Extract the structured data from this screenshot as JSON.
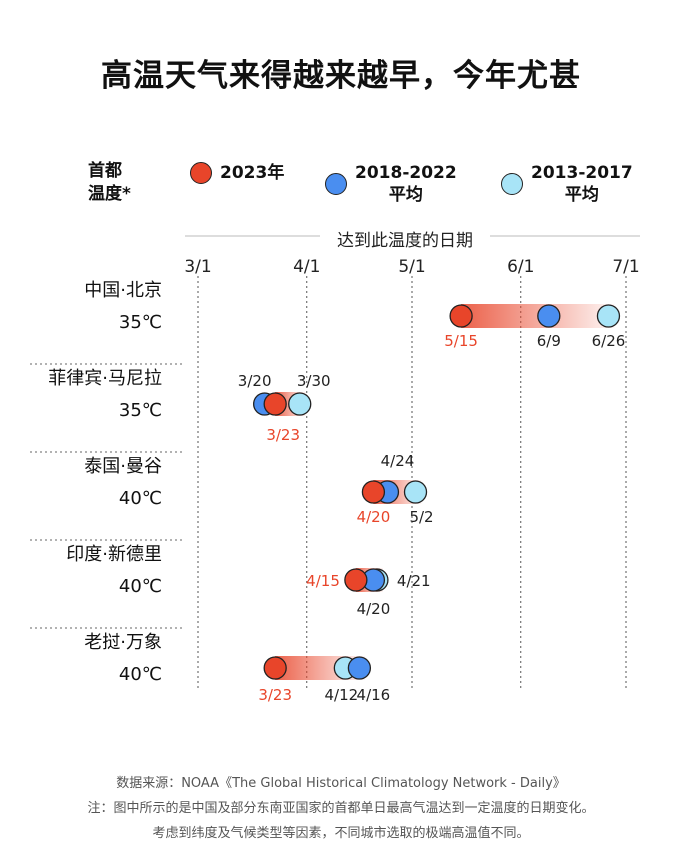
{
  "title": "高温天气来得越来越早，今年尤甚",
  "legend": {
    "header_line1": "首都",
    "header_line2": "温度*",
    "items": [
      {
        "line1": "2023年",
        "line2": "",
        "color": "#e8452a"
      },
      {
        "line1": "2018-2022",
        "line2": "平均",
        "color": "#4a8ef0"
      },
      {
        "line1": "2013-2017",
        "line2": "平均",
        "color": "#a8e4f7"
      }
    ]
  },
  "chart_data": {
    "type": "scatter",
    "xlabel": "达到此温度的日期",
    "x_ticks": [
      "3/1",
      "4/1",
      "5/1",
      "6/1",
      "7/1"
    ],
    "rows": [
      {
        "city": "中国·北京",
        "temp": "35℃",
        "points": [
          {
            "series": "2023年",
            "date": "5/15",
            "label": "5/15"
          },
          {
            "series": "2018-2022平均",
            "date": "6/9",
            "label": "6/9"
          },
          {
            "series": "2013-2017平均",
            "date": "6/26",
            "label": "6/26"
          }
        ]
      },
      {
        "city": "菲律宾·马尼拉",
        "temp": "35℃",
        "points": [
          {
            "series": "2023年",
            "date": "3/23",
            "label": "3/23"
          },
          {
            "series": "2018-2022平均",
            "date": "3/20",
            "label": "3/20"
          },
          {
            "series": "2013-2017平均",
            "date": "3/30",
            "label": "3/30"
          }
        ]
      },
      {
        "city": "泰国·曼谷",
        "temp": "40℃",
        "points": [
          {
            "series": "2023年",
            "date": "4/20",
            "label": "4/20"
          },
          {
            "series": "2018-2022平均",
            "date": "4/24",
            "label": "4/24"
          },
          {
            "series": "2013-2017平均",
            "date": "5/2",
            "label": "5/2"
          }
        ]
      },
      {
        "city": "印度·新德里",
        "temp": "40℃",
        "points": [
          {
            "series": "2023年",
            "date": "4/15",
            "label": "4/15"
          },
          {
            "series": "2018-2022平均",
            "date": "4/20",
            "label": "4/20"
          },
          {
            "series": "2013-2017平均",
            "date": "4/21",
            "label": "4/21"
          }
        ]
      },
      {
        "city": "老挝·万象",
        "temp": "40℃",
        "points": [
          {
            "series": "2023年",
            "date": "3/23",
            "label": "3/23"
          },
          {
            "series": "2018-2022平均",
            "date": "4/16",
            "label": "4/16"
          },
          {
            "series": "2013-2017平均",
            "date": "4/12",
            "label": "4/12"
          }
        ]
      }
    ]
  },
  "footer": {
    "line1": "数据来源：NOAA《The Global Historical Climatology Network - Daily》",
    "line2": "注：图中所示的是中国及部分东南亚国家的首都单日最高气温达到一定温度的日期变化。",
    "line3": "考虑到纬度及气候类型等因素，不同城市选取的极端高温值不同。"
  }
}
